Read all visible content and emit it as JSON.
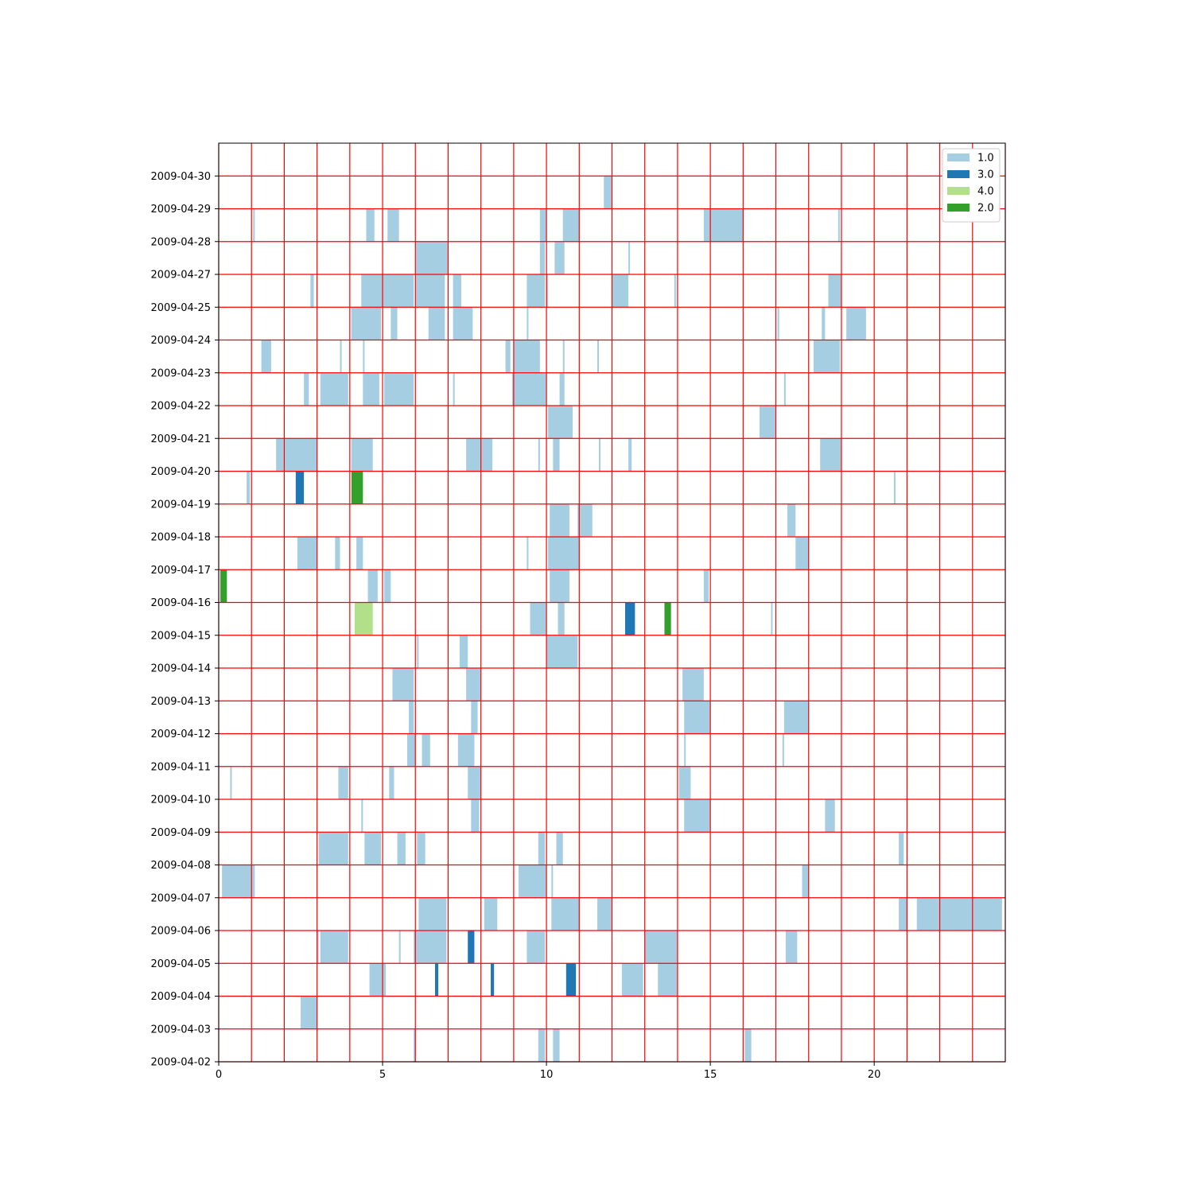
{
  "chart_data": {
    "type": "bar",
    "orientation": "horizontal-timeline",
    "title": "",
    "xlabel": "",
    "ylabel": "",
    "xlim": [
      0,
      24
    ],
    "x_ticks": [
      0,
      5,
      10,
      15,
      20
    ],
    "y_ticks": [
      "2009-04-02",
      "2009-04-03",
      "2009-04-04",
      "2009-04-05",
      "2009-04-06",
      "2009-04-07",
      "2009-04-08",
      "2009-04-09",
      "2009-04-10",
      "2009-04-11",
      "2009-04-12",
      "2009-04-13",
      "2009-04-14",
      "2009-04-15",
      "2009-04-16",
      "2009-04-17",
      "2009-04-18",
      "2009-04-19",
      "2009-04-20",
      "2009-04-21",
      "2009-04-22",
      "2009-04-23",
      "2009-04-24",
      "2009-04-25",
      "2009-04-27",
      "2009-04-28",
      "2009-04-29",
      "2009-04-30"
    ],
    "grid": true,
    "grid_color": "#ff0000",
    "legend_position": "top-right",
    "series": [
      {
        "name": "1.0",
        "color": "#a6cee3",
        "segments": [
          {
            "row": 0,
            "start": 5.95,
            "end": 6.0
          },
          {
            "row": 0,
            "start": 9.75,
            "end": 9.95
          },
          {
            "row": 0,
            "start": 10.2,
            "end": 10.4
          },
          {
            "row": 0,
            "start": 16.05,
            "end": 16.25
          },
          {
            "row": 1,
            "start": 2.5,
            "end": 3.0
          },
          {
            "row": 2,
            "start": 4.6,
            "end": 5.1
          },
          {
            "row": 2,
            "start": 12.3,
            "end": 12.95
          },
          {
            "row": 2,
            "start": 13.4,
            "end": 14.0
          },
          {
            "row": 3,
            "start": 3.0,
            "end": 3.05
          },
          {
            "row": 3,
            "start": 3.1,
            "end": 3.95
          },
          {
            "row": 3,
            "start": 5.5,
            "end": 5.55
          },
          {
            "row": 3,
            "start": 5.95,
            "end": 6.95
          },
          {
            "row": 3,
            "start": 9.4,
            "end": 9.95
          },
          {
            "row": 3,
            "start": 13.0,
            "end": 14.0
          },
          {
            "row": 3,
            "start": 17.3,
            "end": 17.65
          },
          {
            "row": 4,
            "start": 6.1,
            "end": 6.95
          },
          {
            "row": 4,
            "start": 8.1,
            "end": 8.5
          },
          {
            "row": 4,
            "start": 10.15,
            "end": 11.0
          },
          {
            "row": 4,
            "start": 11.55,
            "end": 12.0
          },
          {
            "row": 4,
            "start": 20.75,
            "end": 21.0
          },
          {
            "row": 4,
            "start": 21.3,
            "end": 23.9
          },
          {
            "row": 5,
            "start": 0.1,
            "end": 1.1
          },
          {
            "row": 5,
            "start": 9.15,
            "end": 10.0
          },
          {
            "row": 5,
            "start": 10.15,
            "end": 10.2
          },
          {
            "row": 5,
            "start": 17.8,
            "end": 18.0
          },
          {
            "row": 6,
            "start": 3.05,
            "end": 3.95
          },
          {
            "row": 6,
            "start": 4.45,
            "end": 4.95
          },
          {
            "row": 6,
            "start": 5.45,
            "end": 5.7
          },
          {
            "row": 6,
            "start": 6.05,
            "end": 6.3
          },
          {
            "row": 6,
            "start": 9.75,
            "end": 9.95
          },
          {
            "row": 6,
            "start": 10.3,
            "end": 10.5
          },
          {
            "row": 6,
            "start": 20.75,
            "end": 20.9
          },
          {
            "row": 7,
            "start": 4.35,
            "end": 4.4
          },
          {
            "row": 7,
            "start": 7.7,
            "end": 7.95
          },
          {
            "row": 7,
            "start": 14.2,
            "end": 15.0
          },
          {
            "row": 7,
            "start": 18.5,
            "end": 18.8
          },
          {
            "row": 8,
            "start": 0.35,
            "end": 0.4
          },
          {
            "row": 8,
            "start": 3.65,
            "end": 3.95
          },
          {
            "row": 8,
            "start": 5.2,
            "end": 5.35
          },
          {
            "row": 8,
            "start": 7.6,
            "end": 8.0
          },
          {
            "row": 8,
            "start": 14.05,
            "end": 14.4
          },
          {
            "row": 9,
            "start": 5.75,
            "end": 6.0
          },
          {
            "row": 9,
            "start": 6.2,
            "end": 6.45
          },
          {
            "row": 9,
            "start": 7.3,
            "end": 7.8
          },
          {
            "row": 9,
            "start": 14.2,
            "end": 14.25
          },
          {
            "row": 9,
            "start": 17.2,
            "end": 17.25
          },
          {
            "row": 10,
            "start": 5.8,
            "end": 5.95
          },
          {
            "row": 10,
            "start": 7.7,
            "end": 7.9
          },
          {
            "row": 10,
            "start": 14.2,
            "end": 15.0
          },
          {
            "row": 10,
            "start": 17.25,
            "end": 18.0
          },
          {
            "row": 11,
            "start": 5.3,
            "end": 5.95
          },
          {
            "row": 11,
            "start": 7.55,
            "end": 8.0
          },
          {
            "row": 11,
            "start": 14.15,
            "end": 14.8
          },
          {
            "row": 12,
            "start": 6.05,
            "end": 6.1
          },
          {
            "row": 12,
            "start": 7.35,
            "end": 7.6
          },
          {
            "row": 12,
            "start": 10.0,
            "end": 10.95
          },
          {
            "row": 13,
            "start": 9.5,
            "end": 10.0
          },
          {
            "row": 13,
            "start": 10.35,
            "end": 10.55
          },
          {
            "row": 13,
            "start": 16.85,
            "end": 16.9
          },
          {
            "row": 14,
            "start": 0.1,
            "end": 0.15
          },
          {
            "row": 14,
            "start": 4.55,
            "end": 4.85
          },
          {
            "row": 14,
            "start": 5.05,
            "end": 5.25
          },
          {
            "row": 14,
            "start": 10.1,
            "end": 10.7
          },
          {
            "row": 14,
            "start": 14.8,
            "end": 14.95
          },
          {
            "row": 15,
            "start": 2.4,
            "end": 3.0
          },
          {
            "row": 15,
            "start": 3.55,
            "end": 3.7
          },
          {
            "row": 15,
            "start": 4.2,
            "end": 4.4
          },
          {
            "row": 15,
            "start": 9.4,
            "end": 9.45
          },
          {
            "row": 15,
            "start": 10.05,
            "end": 11.0
          },
          {
            "row": 15,
            "start": 17.6,
            "end": 18.0
          },
          {
            "row": 16,
            "start": 10.1,
            "end": 10.7
          },
          {
            "row": 16,
            "start": 10.95,
            "end": 11.4
          },
          {
            "row": 16,
            "start": 17.35,
            "end": 17.6
          },
          {
            "row": 17,
            "start": 0.85,
            "end": 0.95
          },
          {
            "row": 17,
            "start": 20.6,
            "end": 20.65
          },
          {
            "row": 18,
            "start": 1.75,
            "end": 3.0
          },
          {
            "row": 18,
            "start": 4.05,
            "end": 4.7
          },
          {
            "row": 18,
            "start": 7.55,
            "end": 8.35
          },
          {
            "row": 18,
            "start": 9.75,
            "end": 9.8
          },
          {
            "row": 18,
            "start": 10.2,
            "end": 10.4
          },
          {
            "row": 18,
            "start": 11.6,
            "end": 11.65
          },
          {
            "row": 18,
            "start": 12.5,
            "end": 12.6
          },
          {
            "row": 18,
            "start": 18.35,
            "end": 19.0
          },
          {
            "row": 19,
            "start": 10.05,
            "end": 10.8
          },
          {
            "row": 19,
            "start": 16.5,
            "end": 17.0
          },
          {
            "row": 20,
            "start": 2.6,
            "end": 2.75
          },
          {
            "row": 20,
            "start": 3.1,
            "end": 3.95
          },
          {
            "row": 20,
            "start": 4.4,
            "end": 4.9
          },
          {
            "row": 20,
            "start": 5.05,
            "end": 5.95
          },
          {
            "row": 20,
            "start": 7.15,
            "end": 7.2
          },
          {
            "row": 20,
            "start": 8.95,
            "end": 10.0
          },
          {
            "row": 20,
            "start": 10.4,
            "end": 10.55
          },
          {
            "row": 20,
            "start": 17.25,
            "end": 17.3
          },
          {
            "row": 21,
            "start": 1.3,
            "end": 1.6
          },
          {
            "row": 21,
            "start": 3.7,
            "end": 3.75
          },
          {
            "row": 21,
            "start": 4.4,
            "end": 4.45
          },
          {
            "row": 21,
            "start": 8.75,
            "end": 8.9
          },
          {
            "row": 21,
            "start": 9.0,
            "end": 9.8
          },
          {
            "row": 21,
            "start": 10.5,
            "end": 10.55
          },
          {
            "row": 21,
            "start": 11.55,
            "end": 11.6
          },
          {
            "row": 21,
            "start": 18.15,
            "end": 18.95
          },
          {
            "row": 22,
            "start": 4.05,
            "end": 4.95
          },
          {
            "row": 22,
            "start": 5.25,
            "end": 5.45
          },
          {
            "row": 22,
            "start": 6.4,
            "end": 6.9
          },
          {
            "row": 22,
            "start": 7.15,
            "end": 7.75
          },
          {
            "row": 22,
            "start": 9.4,
            "end": 9.45
          },
          {
            "row": 22,
            "start": 17.05,
            "end": 17.1
          },
          {
            "row": 22,
            "start": 18.4,
            "end": 18.5
          },
          {
            "row": 22,
            "start": 19.15,
            "end": 19.75
          },
          {
            "row": 23,
            "start": 2.8,
            "end": 2.9
          },
          {
            "row": 23,
            "start": 4.35,
            "end": 5.95
          },
          {
            "row": 23,
            "start": 6.0,
            "end": 6.9
          },
          {
            "row": 23,
            "start": 7.15,
            "end": 7.4
          },
          {
            "row": 23,
            "start": 9.4,
            "end": 9.95
          },
          {
            "row": 23,
            "start": 10.0,
            "end": 10.05
          },
          {
            "row": 23,
            "start": 12.0,
            "end": 12.5
          },
          {
            "row": 23,
            "start": 13.9,
            "end": 13.95
          },
          {
            "row": 23,
            "start": 18.6,
            "end": 19.0
          },
          {
            "row": 24,
            "start": 6.0,
            "end": 7.0
          },
          {
            "row": 24,
            "start": 9.8,
            "end": 9.95
          },
          {
            "row": 24,
            "start": 10.25,
            "end": 10.55
          },
          {
            "row": 24,
            "start": 12.5,
            "end": 12.55
          },
          {
            "row": 25,
            "start": 1.05,
            "end": 1.1
          },
          {
            "row": 25,
            "start": 4.5,
            "end": 4.75
          },
          {
            "row": 25,
            "start": 5.15,
            "end": 5.5
          },
          {
            "row": 25,
            "start": 9.8,
            "end": 10.0
          },
          {
            "row": 25,
            "start": 10.5,
            "end": 11.0
          },
          {
            "row": 25,
            "start": 14.8,
            "end": 16.0
          },
          {
            "row": 25,
            "start": 18.9,
            "end": 18.95
          },
          {
            "row": 26,
            "start": 11.75,
            "end": 12.0
          }
        ]
      },
      {
        "name": "3.0",
        "color": "#1f78b4",
        "segments": [
          {
            "row": 2,
            "start": 6.6,
            "end": 6.7
          },
          {
            "row": 2,
            "start": 8.3,
            "end": 8.4
          },
          {
            "row": 2,
            "start": 10.6,
            "end": 10.9
          },
          {
            "row": 3,
            "start": 7.6,
            "end": 7.8
          },
          {
            "row": 13,
            "start": 12.4,
            "end": 12.7
          },
          {
            "row": 17,
            "start": 2.35,
            "end": 2.6
          }
        ]
      },
      {
        "name": "4.0",
        "color": "#b2df8a",
        "segments": [
          {
            "row": 13,
            "start": 4.15,
            "end": 4.7
          }
        ]
      },
      {
        "name": "2.0",
        "color": "#33a02c",
        "segments": [
          {
            "row": 14,
            "start": 0.05,
            "end": 0.25
          },
          {
            "row": 17,
            "start": 4.05,
            "end": 4.4
          },
          {
            "row": 13,
            "start": 13.6,
            "end": 13.8
          }
        ]
      }
    ]
  }
}
